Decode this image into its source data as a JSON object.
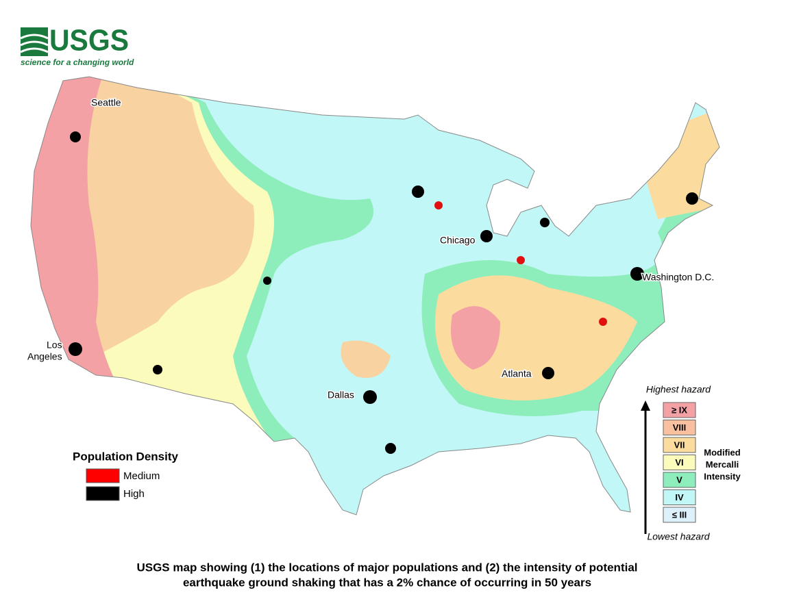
{
  "logo": {
    "name": "USGS",
    "tagline": "science for a changing world"
  },
  "map_labels": {
    "seattle": "Seattle",
    "chicago": "Chicago",
    "washington": "Washington D.C.",
    "los_angeles": [
      "Los",
      "Angeles"
    ],
    "atlanta": "Atlanta",
    "dallas": "Dallas"
  },
  "population_legend": {
    "title": "Population Density",
    "items": [
      {
        "label": "Medium",
        "color": "#ff0000"
      },
      {
        "label": "High",
        "color": "#000000"
      }
    ]
  },
  "intensity_legend": {
    "top": "Highest hazard",
    "bottom": "Lowest hazard",
    "title": [
      "Modified",
      "Mercalli",
      "Intensity"
    ],
    "items": [
      {
        "label": "≥ IX",
        "color": "#f4a1a6"
      },
      {
        "label": "VIII",
        "color": "#f8c09e"
      },
      {
        "label": "VII",
        "color": "#fbdc9e"
      },
      {
        "label": "VI",
        "color": "#fbfbbc"
      },
      {
        "label": "V",
        "color": "#8deebc"
      },
      {
        "label": "IV",
        "color": "#c2f7f7"
      },
      {
        "label": "≤ III",
        "color": "#dcf1fb"
      }
    ]
  },
  "caption": [
    "USGS map showing (1) the locations of major populations and (2) the intensity of potential",
    "earthquake ground shaking that has a 2% chance of occurring in 50 years"
  ]
}
